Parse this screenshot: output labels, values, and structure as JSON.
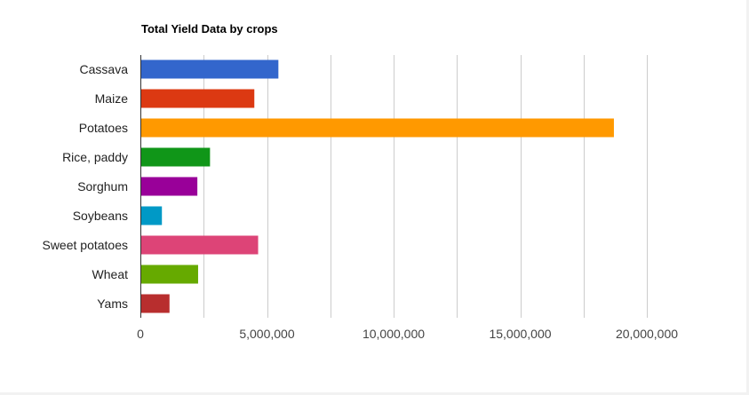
{
  "chart_data": {
    "type": "bar",
    "orientation": "horizontal",
    "title": "Total Yield Data by crops",
    "xlabel": "",
    "ylabel": "",
    "categories": [
      "Cassava",
      "Maize",
      "Potatoes",
      "Rice, paddy",
      "Sorghum",
      "Soybeans",
      "Sweet potatoes",
      "Wheat",
      "Yams"
    ],
    "values": [
      5450000,
      4500000,
      18700000,
      2750000,
      2250000,
      850000,
      4650000,
      2280000,
      1150000
    ],
    "colors": [
      "#3366cc",
      "#dc3912",
      "#ff9900",
      "#109618",
      "#990099",
      "#0099c6",
      "#dd4477",
      "#66aa00",
      "#b82e2e"
    ],
    "xlim": [
      0,
      20000000
    ],
    "xticks": [
      0,
      5000000,
      10000000,
      15000000,
      20000000
    ],
    "xtick_labels": [
      "0",
      "5,000,000",
      "10,000,000",
      "15,000,000",
      "20,000,000"
    ],
    "grid": true,
    "legend": "none"
  }
}
